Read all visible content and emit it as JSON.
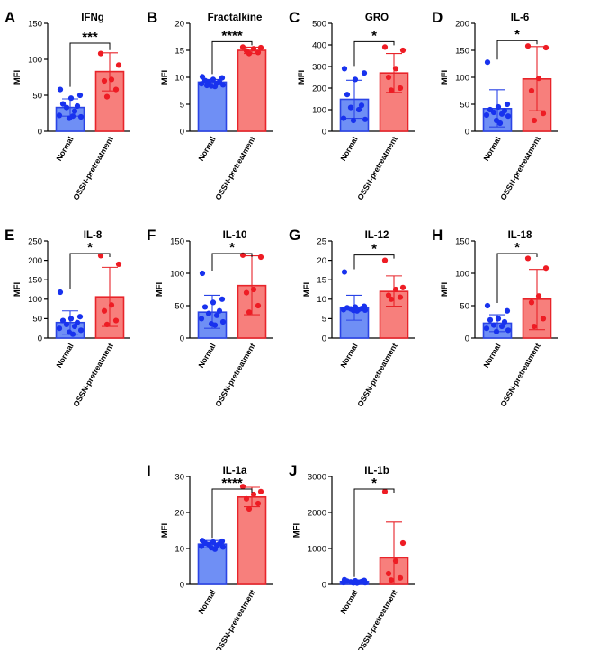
{
  "colors": {
    "normal_fill": "#6f8ff5",
    "normal_stroke": "#2a44e6",
    "normal_dot": "#1832ee",
    "ossn_fill": "#f77f7c",
    "ossn_stroke": "#e8242a",
    "ossn_dot": "#ee1c24"
  },
  "chart_data": [
    {
      "letter": "A",
      "title": "IFNg",
      "type": "bar",
      "ylabel": "MFI",
      "ylim": [
        0,
        150
      ],
      "yticks": [
        0,
        50,
        100,
        150
      ],
      "categories": [
        "Normal",
        "OSSN-pretreatment"
      ],
      "significance": "***",
      "series": [
        {
          "name": "Normal",
          "mean": 33,
          "sd_low": 21,
          "sd_high": 45,
          "points": [
            58,
            50,
            46,
            38,
            35,
            33,
            28,
            22,
            20,
            18,
            21
          ]
        },
        {
          "name": "OSSN-pretreatment",
          "mean": 83,
          "sd_low": 56,
          "sd_high": 109,
          "points": [
            108,
            92,
            72,
            70,
            58,
            48
          ]
        }
      ]
    },
    {
      "letter": "B",
      "title": "Fractalkine",
      "type": "bar",
      "ylabel": "MFI",
      "ylim": [
        0,
        20
      ],
      "yticks": [
        0,
        5,
        10,
        15,
        20
      ],
      "categories": [
        "Normal",
        "OSSN-pretreatment"
      ],
      "significance": "****",
      "series": [
        {
          "name": "Normal",
          "mean": 9.1,
          "sd_low": 8.6,
          "sd_high": 9.6,
          "points": [
            10.1,
            9.9,
            9.6,
            9.4,
            9.2,
            9.1,
            8.9,
            8.8,
            8.6,
            8.4,
            8.3,
            8.5
          ]
        },
        {
          "name": "OSSN-pretreatment",
          "mean": 15.0,
          "sd_low": 14.4,
          "sd_high": 15.6,
          "points": [
            15.6,
            15.5,
            15.3,
            14.9,
            14.6,
            14.4
          ]
        }
      ]
    },
    {
      "letter": "C",
      "title": "GRO",
      "type": "bar",
      "ylabel": "MFI",
      "ylim": [
        0,
        500
      ],
      "yticks": [
        0,
        100,
        200,
        300,
        400,
        500
      ],
      "categories": [
        "Normal",
        "OSSN-pretreatment"
      ],
      "significance": "*",
      "series": [
        {
          "name": "Normal",
          "mean": 148,
          "sd_low": 60,
          "sd_high": 236,
          "points": [
            290,
            270,
            240,
            170,
            120,
            110,
            100,
            60,
            55,
            50
          ]
        },
        {
          "name": "OSSN-pretreatment",
          "mean": 270,
          "sd_low": 180,
          "sd_high": 360,
          "points": [
            390,
            375,
            290,
            250,
            200,
            190
          ]
        }
      ]
    },
    {
      "letter": "D",
      "title": "IL-6",
      "type": "bar",
      "ylabel": "MFI",
      "ylim": [
        0,
        200
      ],
      "yticks": [
        0,
        50,
        100,
        150,
        200
      ],
      "categories": [
        "Normal",
        "OSSN-pretreatment"
      ],
      "significance": "*",
      "series": [
        {
          "name": "Normal",
          "mean": 42,
          "sd_low": 8,
          "sd_high": 77,
          "points": [
            128,
            50,
            45,
            40,
            38,
            35,
            32,
            30,
            28,
            20,
            15
          ]
        },
        {
          "name": "OSSN-pretreatment",
          "mean": 97,
          "sd_low": 38,
          "sd_high": 157,
          "points": [
            158,
            155,
            98,
            75,
            33,
            20
          ]
        }
      ]
    },
    {
      "letter": "E",
      "title": "IL-8",
      "type": "bar",
      "ylabel": "MFI",
      "ylim": [
        0,
        250
      ],
      "yticks": [
        0,
        50,
        100,
        150,
        200,
        250
      ],
      "categories": [
        "Normal",
        "OSSN-pretreatment"
      ],
      "significance": "*",
      "series": [
        {
          "name": "Normal",
          "mean": 40,
          "sd_low": 10,
          "sd_high": 70,
          "points": [
            118,
            55,
            50,
            45,
            40,
            35,
            30,
            25,
            20,
            15,
            10
          ]
        },
        {
          "name": "OSSN-pretreatment",
          "mean": 106,
          "sd_low": 30,
          "sd_high": 182,
          "points": [
            212,
            190,
            85,
            70,
            45,
            35
          ]
        }
      ]
    },
    {
      "letter": "F",
      "title": "IL-10",
      "type": "bar",
      "ylabel": "MFI",
      "ylim": [
        0,
        150
      ],
      "yticks": [
        0,
        50,
        100,
        150
      ],
      "categories": [
        "Normal",
        "OSSN-pretreatment"
      ],
      "significance": "*",
      "series": [
        {
          "name": "Normal",
          "mean": 40,
          "sd_low": 15,
          "sd_high": 66,
          "points": [
            100,
            60,
            55,
            48,
            42,
            38,
            35,
            30,
            25,
            22,
            20
          ]
        },
        {
          "name": "OSSN-pretreatment",
          "mean": 81,
          "sd_low": 36,
          "sd_high": 127,
          "points": [
            128,
            125,
            75,
            70,
            50,
            40
          ]
        }
      ]
    },
    {
      "letter": "G",
      "title": "IL-12",
      "type": "bar",
      "ylabel": "MFI",
      "ylim": [
        0,
        25
      ],
      "yticks": [
        0,
        5,
        10,
        15,
        20,
        25
      ],
      "categories": [
        "Normal",
        "OSSN-pretreatment"
      ],
      "significance": "*",
      "series": [
        {
          "name": "Normal",
          "mean": 7.8,
          "sd_low": 4.6,
          "sd_high": 11,
          "points": [
            17,
            8.2,
            8,
            7.8,
            7.6,
            7.5,
            7.4,
            7.3,
            7.2,
            7.1,
            7.0
          ]
        },
        {
          "name": "OSSN-pretreatment",
          "mean": 12,
          "sd_low": 8.2,
          "sd_high": 16,
          "points": [
            20,
            13,
            12.5,
            11,
            10.5,
            10
          ]
        }
      ]
    },
    {
      "letter": "H",
      "title": "IL-18",
      "type": "bar",
      "ylabel": "MFI",
      "ylim": [
        0,
        150
      ],
      "yticks": [
        0,
        50,
        100,
        150
      ],
      "categories": [
        "Normal",
        "OSSN-pretreatment"
      ],
      "significance": "*",
      "series": [
        {
          "name": "Normal",
          "mean": 23,
          "sd_low": 10,
          "sd_high": 36,
          "points": [
            50,
            42,
            30,
            28,
            25,
            20,
            18,
            15,
            12,
            10
          ]
        },
        {
          "name": "OSSN-pretreatment",
          "mean": 60,
          "sd_low": 13,
          "sd_high": 106,
          "points": [
            123,
            108,
            65,
            55,
            30,
            18
          ]
        }
      ]
    },
    {
      "letter": "I",
      "title": "IL-1a",
      "type": "bar",
      "ylabel": "MFI",
      "ylim": [
        0,
        30
      ],
      "yticks": [
        0,
        10,
        20,
        30
      ],
      "categories": [
        "Normal",
        "OSSN-pretreatment"
      ],
      "significance": "****",
      "series": [
        {
          "name": "Normal",
          "mean": 11.2,
          "sd_low": 10.2,
          "sd_high": 12.2,
          "points": [
            12.2,
            12.0,
            11.8,
            11.5,
            11.3,
            11.1,
            10.9,
            10.6,
            10.4,
            10.2,
            9.8
          ]
        },
        {
          "name": "OSSN-pretreatment",
          "mean": 24.3,
          "sd_low": 21.6,
          "sd_high": 27.0,
          "points": [
            27.2,
            25.8,
            25.0,
            23.8,
            22.5,
            21.0
          ]
        }
      ]
    },
    {
      "letter": "J",
      "title": "IL-1b",
      "type": "bar",
      "ylabel": "MFI",
      "ylim": [
        0,
        3000
      ],
      "yticks": [
        0,
        1000,
        2000,
        3000
      ],
      "categories": [
        "Normal",
        "OSSN-pretreatment"
      ],
      "significance": "*",
      "series": [
        {
          "name": "Normal",
          "mean": 80,
          "sd_low": 40,
          "sd_high": 120,
          "points": [
            130,
            110,
            100,
            90,
            80,
            70,
            60,
            50,
            45,
            40,
            35
          ]
        },
        {
          "name": "OSSN-pretreatment",
          "mean": 740,
          "sd_low": 0,
          "sd_high": 1730,
          "points": [
            2580,
            1150,
            650,
            300,
            180,
            120
          ]
        }
      ]
    }
  ]
}
